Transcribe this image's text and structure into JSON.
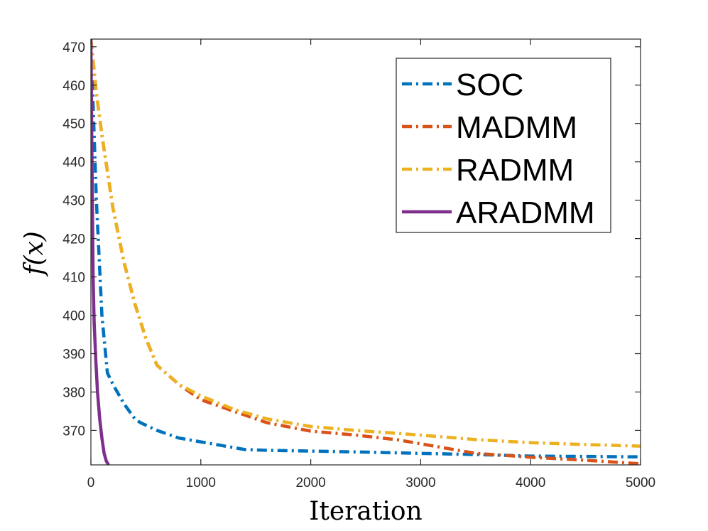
{
  "chart_data": {
    "type": "line",
    "title": "",
    "xlabel": "Iteration",
    "ylabel": "f(x)",
    "xlim": [
      0,
      5000
    ],
    "ylim": [
      361,
      472
    ],
    "xticks": [
      0,
      1000,
      2000,
      3000,
      4000,
      5000
    ],
    "yticks": [
      370,
      380,
      390,
      400,
      410,
      420,
      430,
      440,
      450,
      460,
      470
    ],
    "grid": false,
    "legend_position": "top-right",
    "series": [
      {
        "name": "SOC",
        "color": "#0072BD",
        "style": "dashdot",
        "x": [
          0,
          20,
          50,
          100,
          150,
          200,
          300,
          400,
          450,
          600,
          800,
          1000,
          1400,
          1600,
          2000,
          2400,
          3000,
          3500,
          4000,
          5000
        ],
        "y": [
          472,
          455,
          430,
          400,
          385,
          382,
          377,
          373,
          372,
          370,
          368,
          367,
          365,
          364.8,
          364.6,
          364.4,
          364.0,
          363.7,
          363.3,
          363.1
        ]
      },
      {
        "name": "MADMM",
        "color": "#D95319",
        "style": "dashdot",
        "x": [
          0,
          50,
          100,
          200,
          300,
          400,
          500,
          600,
          800,
          1000,
          1300,
          1600,
          2000,
          2400,
          2800,
          3200,
          3500,
          4000,
          4500,
          5000
        ],
        "y": [
          472,
          458,
          447,
          428,
          414,
          403,
          394,
          387,
          382,
          378,
          375,
          372,
          369.8,
          368.8,
          367.5,
          365.5,
          364,
          363,
          362.2,
          361.3
        ]
      },
      {
        "name": "RADMM",
        "color": "#EDB120",
        "style": "dashdot",
        "x": [
          0,
          50,
          100,
          200,
          300,
          400,
          500,
          600,
          800,
          1000,
          1300,
          1600,
          2000,
          2400,
          2800,
          3200,
          3500,
          4000,
          4500,
          5000
        ],
        "y": [
          472,
          458,
          447,
          428,
          414,
          403,
          394,
          387,
          382,
          379,
          375.5,
          373,
          371,
          370,
          369.2,
          368.3,
          367.6,
          366.8,
          366.3,
          365.9
        ]
      },
      {
        "name": "ARADMM",
        "color": "#7E2F8E",
        "style": "solid",
        "x": [
          0,
          10,
          20,
          30,
          45,
          60,
          80,
          100,
          120,
          140,
          160
        ],
        "y": [
          472,
          440,
          410,
          398,
          388,
          380,
          373,
          368,
          364,
          362,
          361
        ]
      }
    ]
  }
}
